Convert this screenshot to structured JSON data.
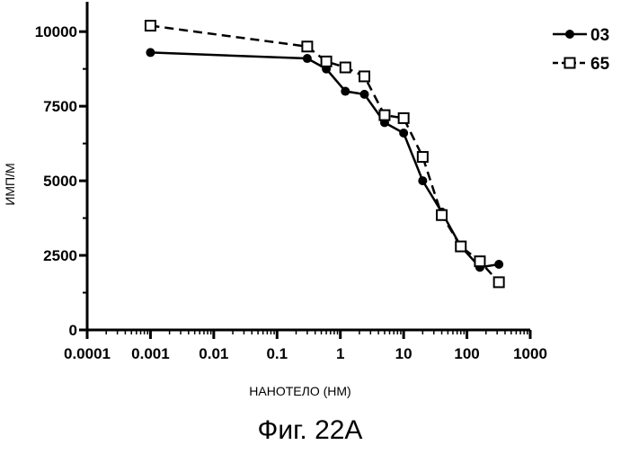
{
  "chart_data": {
    "type": "line",
    "title": "",
    "xlabel": "НАНОТЕЛО (НМ)",
    "ylabel": "ИМП/М",
    "xscale": "log",
    "xlim": [
      0.0001,
      1000
    ],
    "ylim": [
      0,
      11000
    ],
    "x_ticks": [
      0.0001,
      0.001,
      0.01,
      0.1,
      1,
      10,
      100,
      1000
    ],
    "x_tick_labels": [
      "0.0001",
      "0.001",
      "0.01",
      "0.1",
      "1",
      "10",
      "100",
      "1000"
    ],
    "y_ticks": [
      0,
      2500,
      5000,
      7500,
      10000
    ],
    "y_tick_labels": [
      "0",
      "2500",
      "5000",
      "7500",
      "10000"
    ],
    "grid": false,
    "legend_position": "top-right",
    "series": [
      {
        "name": "03",
        "marker": "filled-circle",
        "line": "solid",
        "color": "#000000",
        "x": [
          0.001,
          0.3,
          0.6,
          1.2,
          2.4,
          5,
          10,
          20,
          40,
          80,
          160,
          320
        ],
        "y": [
          9300,
          9100,
          8750,
          8000,
          7900,
          6950,
          6600,
          5000,
          3950,
          2800,
          2100,
          2200
        ]
      },
      {
        "name": "65",
        "marker": "open-square",
        "line": "dashed",
        "color": "#000000",
        "x": [
          0.001,
          0.3,
          0.6,
          1.2,
          2.4,
          5,
          10,
          20,
          40,
          80,
          160,
          320
        ],
        "y": [
          10200,
          9500,
          9000,
          8800,
          8500,
          7200,
          7100,
          5800,
          3850,
          2800,
          2300,
          1600
        ]
      }
    ]
  },
  "figure": {
    "caption": "Фиг. 22А"
  }
}
